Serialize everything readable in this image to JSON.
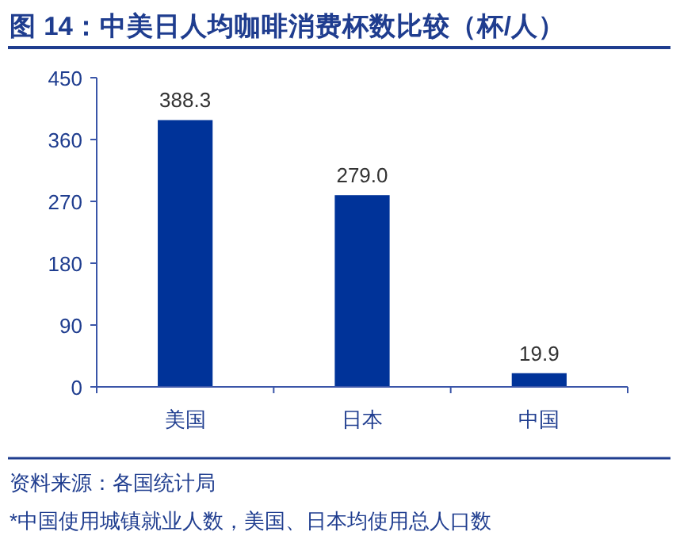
{
  "chart_data": {
    "type": "bar",
    "title": "图 14：中美日人均咖啡消费杯数比较（杯/人）",
    "categories": [
      "美国",
      "日本",
      "中国"
    ],
    "values": [
      388.3,
      279.0,
      19.9
    ],
    "value_labels": [
      "388.3",
      "279.0",
      "19.9"
    ],
    "color": "#003399",
    "ylim": [
      0,
      450
    ],
    "yticks": [
      0,
      90,
      180,
      270,
      360,
      450
    ],
    "grid": false,
    "annotations": [
      "资料来源：各国统计局",
      "*中国使用城镇就业人数，美国、日本均使用总人口数"
    ]
  }
}
